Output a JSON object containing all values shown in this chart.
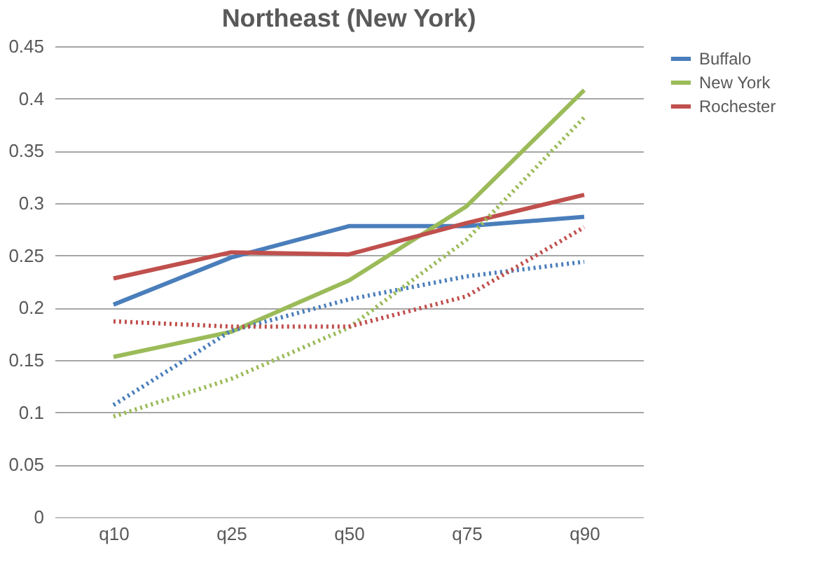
{
  "chart_data": {
    "type": "line",
    "title": "Northeast (New York)",
    "categories": [
      "q10",
      "q25",
      "q50",
      "q75",
      "q90"
    ],
    "series": [
      {
        "name": "Buffalo",
        "color": "#4a7ebb",
        "values": [
          0.203,
          0.248,
          0.278,
          0.278,
          0.287
        ]
      },
      {
        "name": "New York",
        "color": "#9bbb59",
        "values": [
          0.153,
          0.177,
          0.226,
          0.297,
          0.408
        ]
      },
      {
        "name": "Rochester",
        "color": "#c0504d",
        "values": [
          0.228,
          0.253,
          0.251,
          0.281,
          0.308
        ]
      },
      {
        "color": "#4a7ebb",
        "line_style": "dotted",
        "values": [
          0.107,
          0.178,
          0.208,
          0.23,
          0.244
        ]
      },
      {
        "color": "#9bbb59",
        "line_style": "dotted",
        "values": [
          0.096,
          0.132,
          0.181,
          0.265,
          0.382
        ]
      },
      {
        "color": "#c0504d",
        "line_style": "dotted",
        "values": [
          0.187,
          0.182,
          0.182,
          0.211,
          0.277
        ]
      }
    ],
    "ylim": [
      0,
      0.45
    ],
    "yticks": [
      0,
      0.05,
      0.1,
      0.15,
      0.2,
      0.25,
      0.3,
      0.35,
      0.4,
      0.45
    ],
    "grid": "y",
    "legend": "right",
    "marker": "none",
    "line_style": "solid"
  }
}
